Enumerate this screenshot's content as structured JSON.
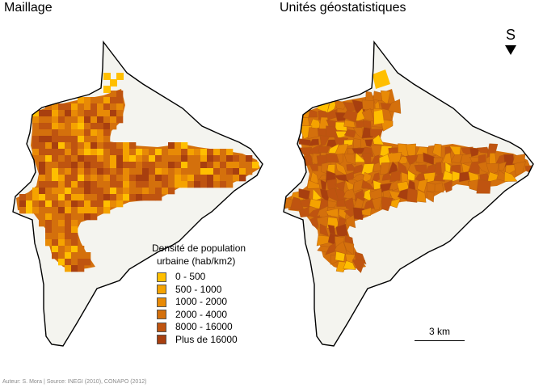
{
  "panels": {
    "left_title": "Maillage",
    "right_title": "Unités géostatistiques"
  },
  "legend": {
    "title_line1": "Densité de population",
    "title_line2": "urbaine (hab/km2)",
    "classes": [
      {
        "label": "0 - 500",
        "color": "#ffbf00"
      },
      {
        "label": "500 - 1000",
        "color": "#f5a300"
      },
      {
        "label": "1000 - 2000",
        "color": "#e88a06"
      },
      {
        "label": "2000 - 4000",
        "color": "#d4700c"
      },
      {
        "label": "8000 - 16000",
        "color": "#bf5410"
      },
      {
        "label": "Plus de 16000",
        "color": "#a83f0f"
      }
    ]
  },
  "north_arrow": {
    "letter": "S",
    "icon": "triangle-down-icon"
  },
  "scale_bar": {
    "label": "3 km"
  },
  "credits": "Auteur: S. Mora | Source: INEGI (2010), CONAPO (2012)",
  "colors": {
    "base": "#f4f4ef",
    "outline": "#000000"
  }
}
